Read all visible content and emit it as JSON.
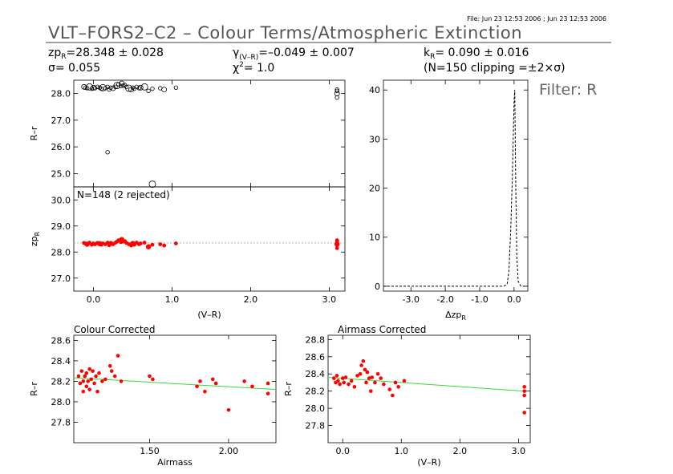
{
  "file_info": "File: Jun 23 12:53 2006 ; Jun 23 12:53 2006",
  "title": "VLT–FORS2–C2 – Colour Terms/Atmospheric Extinction",
  "filter_label": "Filter: R",
  "stats": {
    "zp": "zp",
    "zp_sub": "R",
    "zp_value": "=28.348 ± 0.028",
    "sigma": "σ= 0.055",
    "gamma": "γ",
    "gamma_sub": "(V–R)",
    "gamma_value": "=–0.049 ± 0.007",
    "chi": "χ",
    "chi_sup": "2",
    "chi_value": "= 1.0",
    "k": "k",
    "k_sub": "R",
    "k_value": "= 0.090 ± 0.016",
    "clip": "(N=150 clipping =±2×σ)"
  },
  "colors": {
    "red": "#ff0000",
    "green": "#33dd33",
    "black": "#000000",
    "gray": "#aaaaaa"
  },
  "chart_data": [
    {
      "id": "top-left",
      "type": "scatter",
      "ylabel": "R–r",
      "xlim": [
        -0.25,
        3.2
      ],
      "ylim": [
        24.5,
        28.5
      ],
      "yticks": [
        25.0,
        26.0,
        27.0,
        28.0
      ],
      "x": [
        -0.12,
        -0.1,
        -0.08,
        -0.05,
        -0.02,
        0.0,
        0.02,
        0.05,
        0.08,
        0.1,
        0.12,
        0.15,
        0.18,
        0.2,
        0.22,
        0.25,
        0.28,
        0.3,
        0.32,
        0.35,
        0.36,
        0.38,
        0.4,
        0.42,
        0.45,
        0.48,
        0.5,
        0.52,
        0.55,
        0.58,
        0.6,
        0.65,
        0.7,
        0.75,
        0.85,
        0.9,
        1.05,
        0.18,
        0.75,
        3.1,
        3.1,
        3.1,
        3.1
      ],
      "y": [
        28.25,
        28.22,
        28.2,
        28.25,
        28.18,
        28.22,
        28.2,
        28.25,
        28.22,
        28.18,
        28.22,
        28.2,
        28.25,
        28.15,
        28.22,
        28.2,
        28.25,
        28.3,
        28.35,
        28.28,
        28.38,
        28.3,
        28.32,
        28.25,
        28.2,
        28.15,
        28.22,
        28.18,
        28.25,
        28.2,
        28.22,
        28.25,
        28.1,
        28.18,
        28.2,
        28.15,
        28.22,
        25.8,
        24.6,
        28.1,
        28.0,
        27.85,
        28.15
      ]
    },
    {
      "id": "mid-left",
      "type": "scatter",
      "annotation": "N=148 (2 rejected)",
      "ylabel": "zp",
      "ylabel_sub": "R",
      "xlabel": "(V–R)",
      "xlim": [
        -0.25,
        3.2
      ],
      "ylim": [
        26.5,
        30.5
      ],
      "yticks": [
        27.0,
        28.0,
        29.0,
        30.0
      ],
      "xticks": [
        0.0,
        1.0,
        2.0,
        3.0
      ],
      "fit": 28.348,
      "x": [
        -0.12,
        -0.1,
        -0.08,
        -0.05,
        -0.02,
        0.0,
        0.02,
        0.05,
        0.08,
        0.1,
        0.12,
        0.15,
        0.18,
        0.2,
        0.22,
        0.25,
        0.28,
        0.3,
        0.32,
        0.35,
        0.36,
        0.38,
        0.4,
        0.42,
        0.45,
        0.48,
        0.5,
        0.52,
        0.55,
        0.58,
        0.6,
        0.65,
        0.7,
        0.75,
        0.85,
        0.9,
        1.05,
        3.1,
        3.1,
        3.1,
        3.1
      ],
      "y": [
        28.35,
        28.32,
        28.3,
        28.36,
        28.28,
        28.33,
        28.3,
        28.35,
        28.32,
        28.28,
        28.33,
        28.3,
        28.36,
        28.26,
        28.33,
        28.3,
        28.36,
        28.4,
        28.45,
        28.38,
        28.48,
        28.4,
        28.42,
        28.35,
        28.3,
        28.25,
        28.33,
        28.28,
        28.36,
        28.3,
        28.33,
        28.36,
        28.2,
        28.28,
        28.3,
        28.25,
        28.33,
        28.4,
        28.3,
        28.15,
        28.45
      ]
    },
    {
      "id": "histogram",
      "type": "line",
      "xlabel": "Δzp",
      "xlabel_sub": "R",
      "xlim": [
        -3.8,
        0.4
      ],
      "ylim": [
        -1,
        42
      ],
      "xticks": [
        -3.0,
        -2.0,
        -1.0,
        0.0
      ],
      "yticks": [
        0,
        10,
        20,
        30,
        40
      ],
      "x": [
        -3.8,
        -0.3,
        -0.2,
        -0.15,
        -0.1,
        -0.05,
        0.0,
        0.02,
        0.05,
        0.08,
        0.12,
        0.2,
        0.4
      ],
      "y": [
        0,
        0,
        0.5,
        3,
        11,
        22,
        38,
        40,
        20,
        6,
        1,
        0,
        0
      ]
    },
    {
      "id": "colour-corrected",
      "type": "scatter",
      "title": "Colour Corrected",
      "ylabel": "R–r",
      "xlabel": "Airmass",
      "xlim": [
        1.02,
        2.3
      ],
      "ylim": [
        27.6,
        28.65
      ],
      "yticks": [
        27.8,
        28.0,
        28.2,
        28.4,
        28.6
      ],
      "xticks": [
        1.5,
        2.0
      ],
      "xtick_labels": [
        "1.50",
        "2.00"
      ],
      "fit": {
        "x": [
          1.02,
          2.3
        ],
        "y": [
          28.235,
          28.12
        ]
      },
      "x": [
        1.05,
        1.06,
        1.07,
        1.08,
        1.08,
        1.09,
        1.1,
        1.1,
        1.11,
        1.12,
        1.12,
        1.13,
        1.14,
        1.15,
        1.16,
        1.17,
        1.18,
        1.2,
        1.22,
        1.25,
        1.26,
        1.28,
        1.3,
        1.32,
        1.5,
        1.52,
        1.8,
        1.82,
        1.85,
        1.9,
        1.92,
        2.0,
        2.1,
        2.15,
        2.25,
        2.25
      ],
      "y": [
        28.25,
        28.18,
        28.3,
        28.1,
        28.2,
        28.25,
        28.15,
        28.28,
        28.2,
        28.32,
        28.12,
        28.22,
        28.3,
        28.18,
        28.25,
        28.1,
        28.28,
        28.2,
        28.22,
        28.35,
        28.3,
        28.25,
        28.45,
        28.2,
        28.25,
        28.22,
        28.15,
        28.2,
        28.1,
        28.22,
        28.18,
        27.92,
        28.2,
        28.15,
        28.18,
        28.08
      ]
    },
    {
      "id": "airmass-corrected",
      "type": "scatter",
      "title": "Airmass Corrected",
      "ylabel": "R–r",
      "xlabel": "(V–R)",
      "xlim": [
        -0.25,
        3.2
      ],
      "ylim": [
        27.6,
        28.85
      ],
      "yticks": [
        27.8,
        28.0,
        28.2,
        28.4,
        28.6,
        28.8
      ],
      "xticks": [
        0.0,
        1.0,
        2.0,
        3.0
      ],
      "fit": {
        "x": [
          -0.25,
          3.1
        ],
        "y": [
          28.36,
          28.2
        ]
      },
      "x": [
        -0.15,
        -0.12,
        -0.1,
        -0.08,
        -0.05,
        0.0,
        0.02,
        0.05,
        0.1,
        0.15,
        0.2,
        0.25,
        0.3,
        0.32,
        0.35,
        0.38,
        0.4,
        0.42,
        0.45,
        0.48,
        0.5,
        0.55,
        0.6,
        0.65,
        0.7,
        0.8,
        0.85,
        0.9,
        0.95,
        1.05,
        3.1,
        3.1,
        3.1,
        3.1
      ],
      "y": [
        28.35,
        28.3,
        28.38,
        28.32,
        28.28,
        28.35,
        28.3,
        28.36,
        28.28,
        28.32,
        28.25,
        28.38,
        28.4,
        28.5,
        28.55,
        28.45,
        28.3,
        28.42,
        28.35,
        28.2,
        28.36,
        28.3,
        28.4,
        28.35,
        28.28,
        28.22,
        28.15,
        28.3,
        28.25,
        28.32,
        28.25,
        28.2,
        28.15,
        27.95
      ]
    }
  ]
}
